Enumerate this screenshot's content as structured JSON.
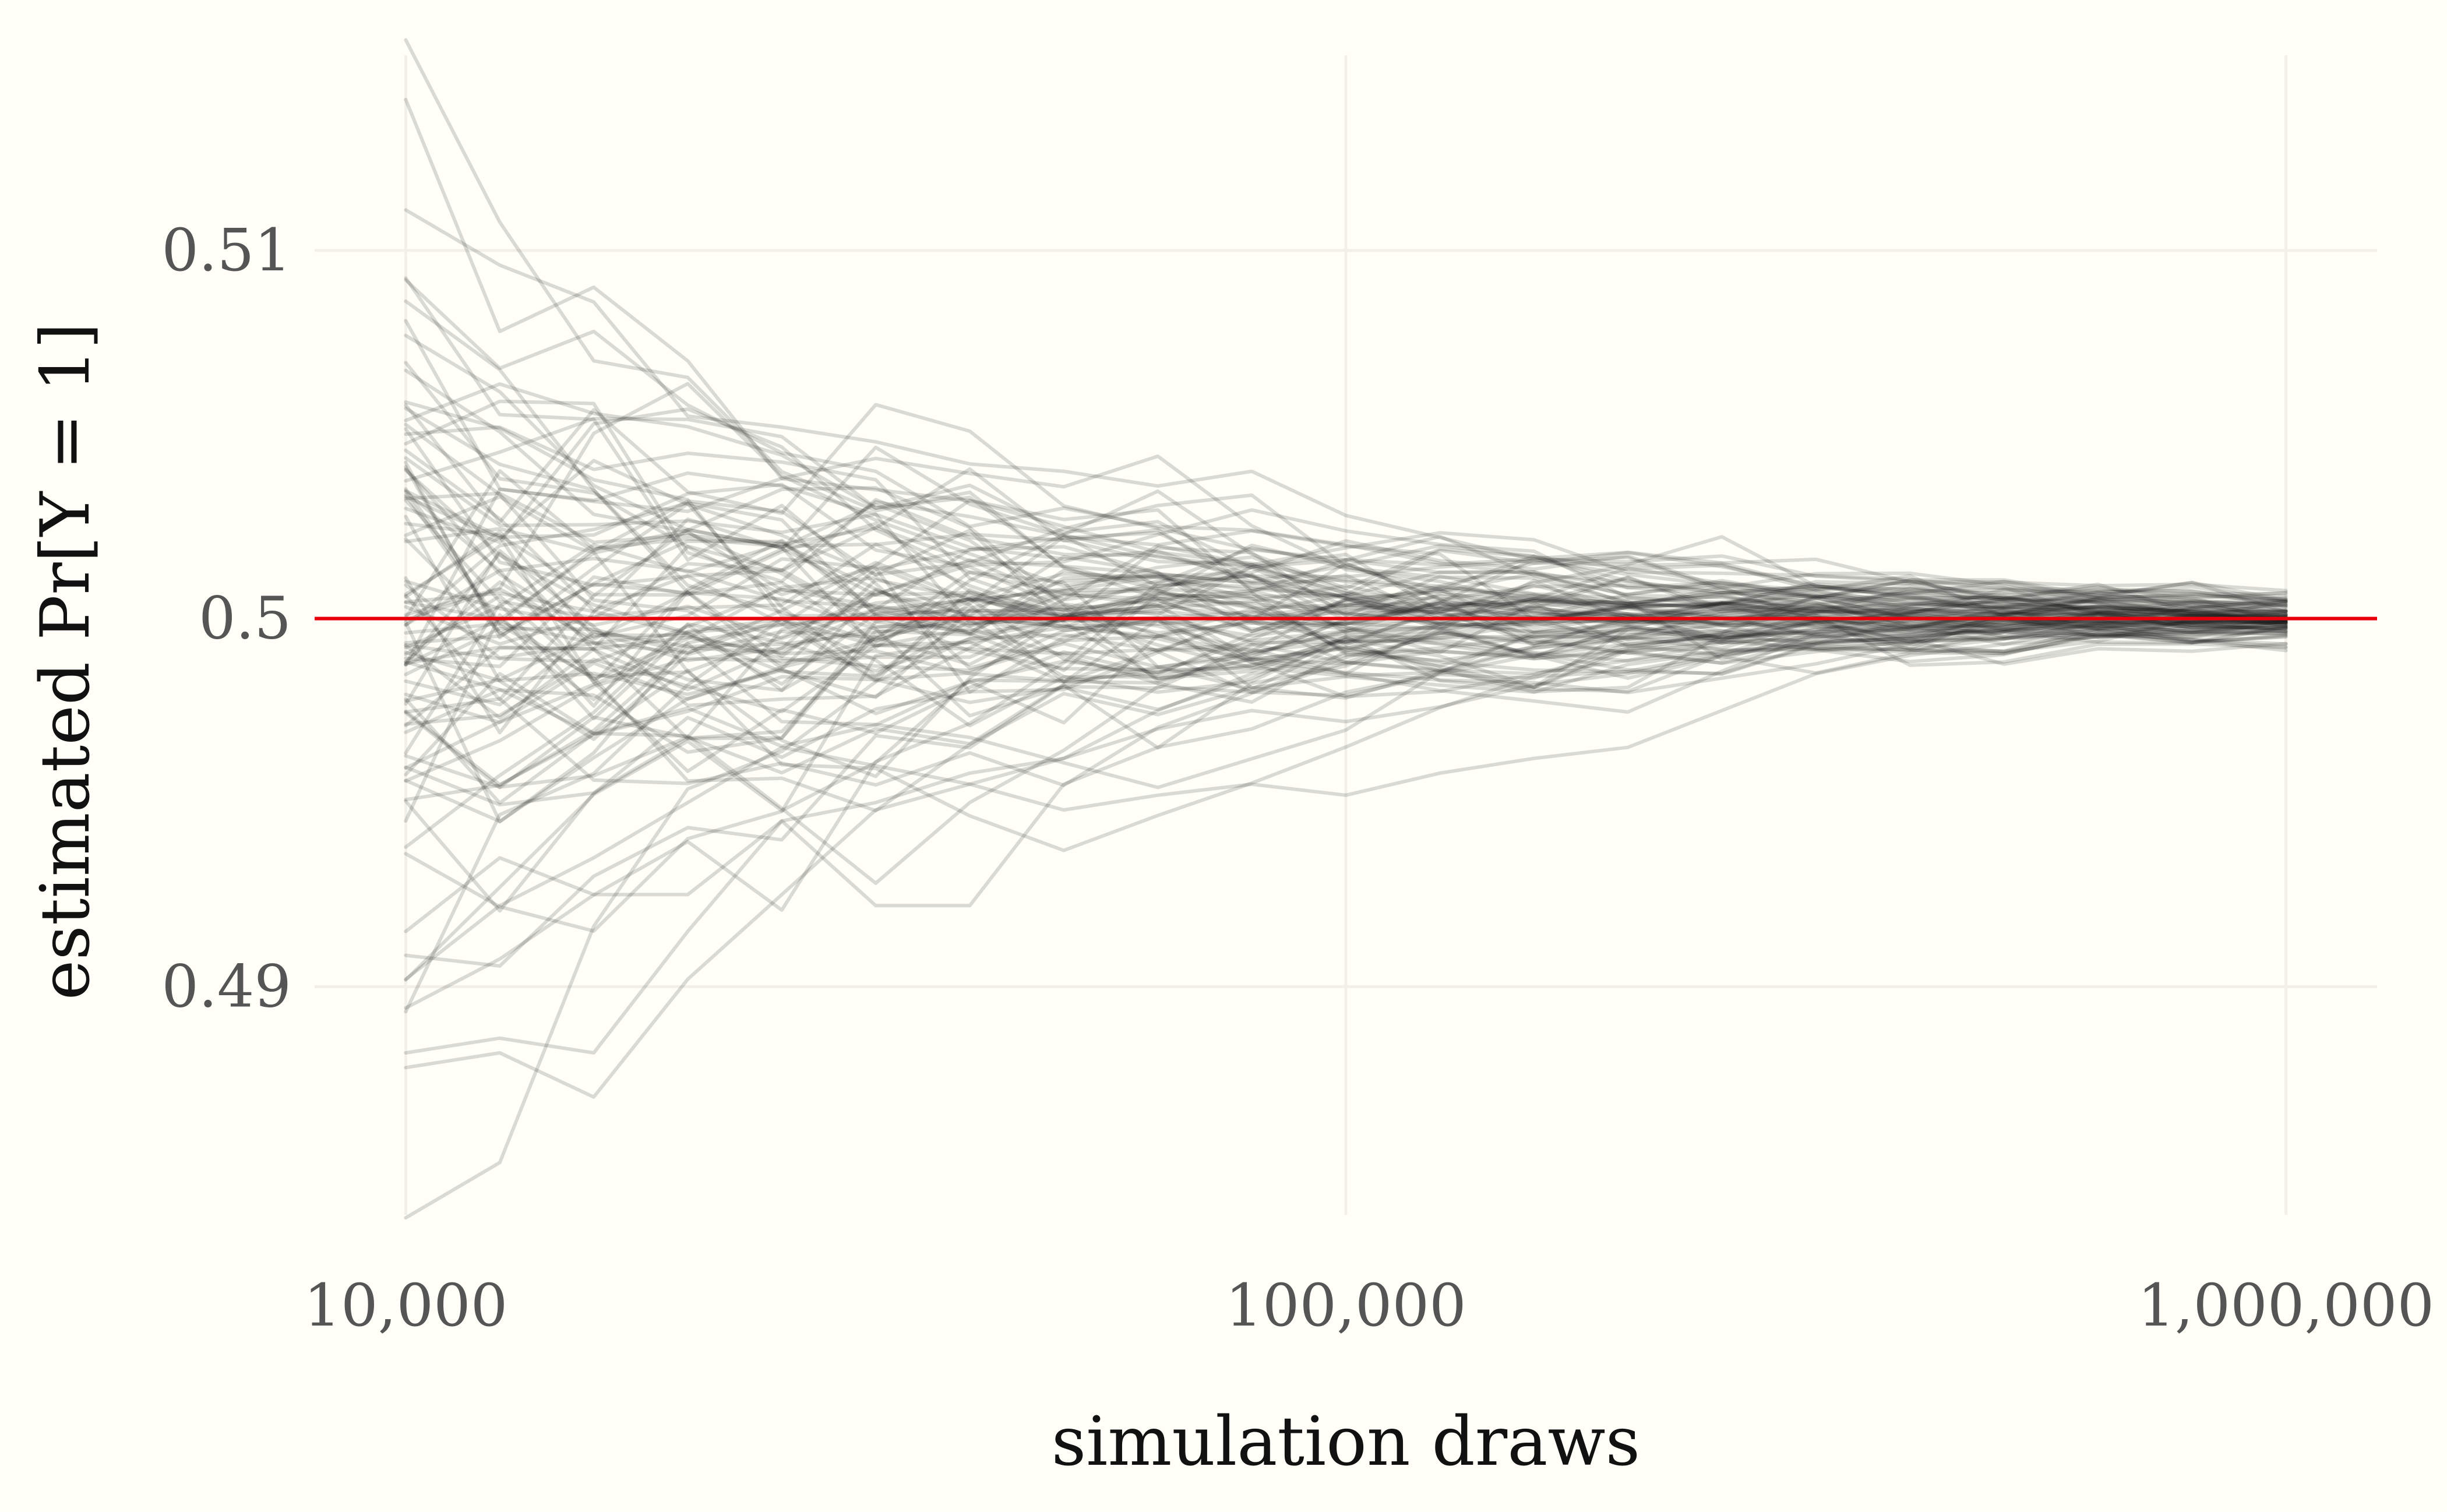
{
  "chart_data": {
    "type": "line",
    "xlabel": "simulation draws",
    "ylabel": "estimated Pr[Y = 1]",
    "x_scale": "log10",
    "xlim": [
      8000,
      1250000
    ],
    "ylim": [
      0.4838,
      0.5153
    ],
    "x_ticks": [
      10000,
      100000,
      1000000
    ],
    "x_tick_labels": [
      "10,000",
      "100,000",
      "1,000,000"
    ],
    "y_ticks": [
      0.49,
      0.5,
      0.51
    ],
    "y_tick_labels": [
      "0.49",
      "0.5",
      "0.51"
    ],
    "grid": true,
    "legend": "none",
    "reference_line": {
      "y": 0.5,
      "color": "#e8000b"
    },
    "series_color": "#1a1a1a",
    "series_opacity": 0.16,
    "num_series": 100,
    "x": [
      10000,
      12590,
      15850,
      19950,
      25120,
      31620,
      39810,
      50120,
      63100,
      79430,
      100000,
      125900,
      158500,
      199500,
      251200,
      316200,
      398100,
      501200,
      631000,
      794300,
      1000000
    ],
    "highlighted_series": [
      {
        "values": [
          0.5141,
          0.5078,
          0.509,
          0.507,
          0.5038,
          0.5035,
          0.5032,
          0.5025,
          0.5018,
          0.5015,
          0.501,
          0.5008,
          0.5006,
          0.5004,
          0.5003,
          0.5002,
          0.5002,
          0.5001,
          0.5001,
          0.5001,
          0.5001
        ]
      },
      {
        "values": [
          0.5111,
          0.5096,
          0.5086,
          0.5055,
          0.5052,
          0.5048,
          0.5042,
          0.504,
          0.5036,
          0.504,
          0.5028,
          0.5022,
          0.5016,
          0.5012,
          0.5009,
          0.5006,
          0.5004,
          0.5003,
          0.5003,
          0.5002,
          0.5002
        ]
      },
      {
        "values": [
          0.5092,
          0.5068,
          0.5078,
          0.5058,
          0.5045,
          0.504,
          0.5025,
          0.503,
          0.5025,
          0.5024,
          0.502,
          0.5015,
          0.5012,
          0.501,
          0.5007,
          0.5006,
          0.5005,
          0.5004,
          0.5003,
          0.5002,
          0.5002
        ]
      },
      {
        "values": [
          0.4878,
          0.4882,
          0.487,
          0.4902,
          0.4925,
          0.4948,
          0.4955,
          0.4962,
          0.4975,
          0.4985,
          0.499,
          0.4992,
          0.4995,
          0.4997,
          0.4998,
          0.4999,
          0.4999,
          0.4999,
          0.5,
          0.5,
          0.5
        ]
      },
      {
        "values": [
          0.4882,
          0.4886,
          0.4882,
          0.4915,
          0.4945,
          0.4922,
          0.4922,
          0.4955,
          0.4965,
          0.497,
          0.498,
          0.4985,
          0.499,
          0.4993,
          0.4995,
          0.4997,
          0.4998,
          0.4998,
          0.4999,
          0.4999,
          0.4999
        ]
      },
      {
        "values": [
          0.4902,
          0.4922,
          0.4935,
          0.495,
          0.4965,
          0.496,
          0.4955,
          0.4948,
          0.4952,
          0.4955,
          0.4952,
          0.4958,
          0.4962,
          0.4965,
          0.4975,
          0.4985,
          0.499,
          0.4993,
          0.4995,
          0.4997,
          0.4998
        ]
      },
      {
        "values": [
          0.4915,
          0.4935,
          0.4925,
          0.4925,
          0.4945,
          0.495,
          0.4958,
          0.4962,
          0.497,
          0.4975,
          0.4972,
          0.4976,
          0.4982,
          0.4985,
          0.499,
          0.4993,
          0.4995,
          0.4997,
          0.4998,
          0.4999,
          0.4999
        ]
      }
    ]
  }
}
